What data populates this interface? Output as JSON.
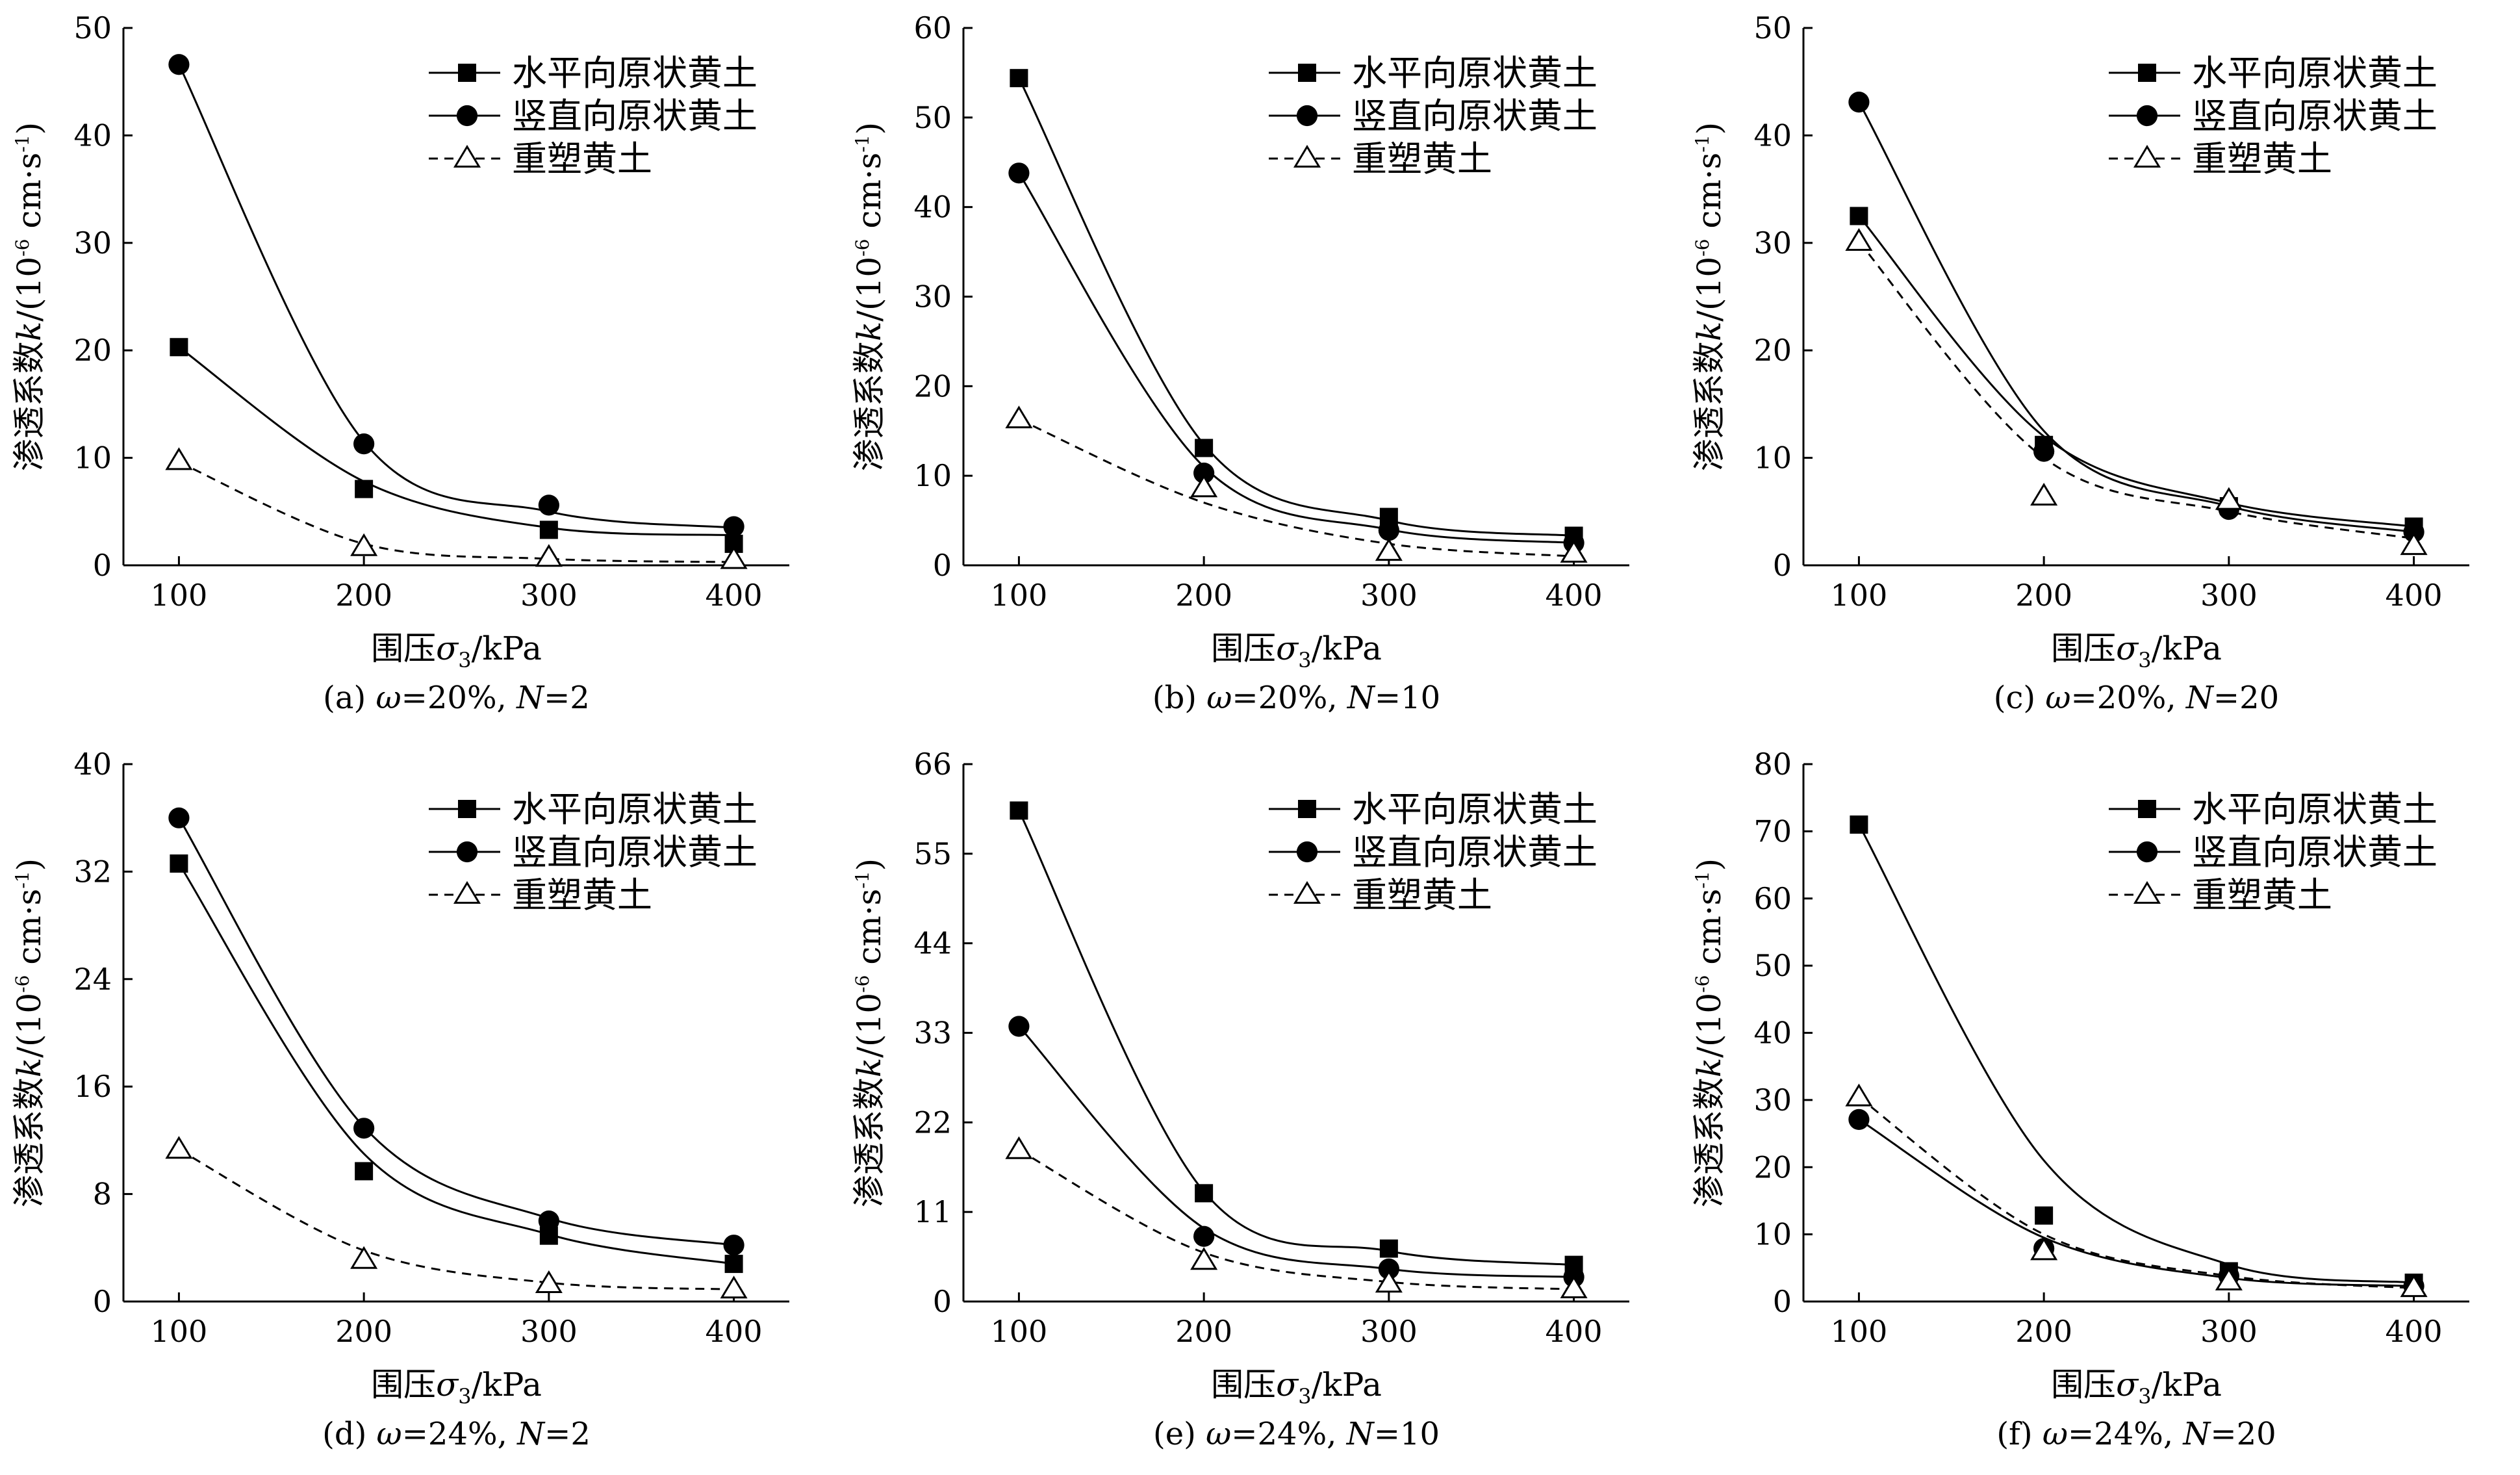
{
  "legend_labels": {
    "horizontal": "水平向原状黄土",
    "vertical": "竖直向原状黄土",
    "remolded": "重塑黄土"
  },
  "axis_text": {
    "x_prefix": "围压",
    "x_symbol": "σ",
    "x_sub": "3",
    "x_unit": "/kPa",
    "y_prefix": "渗透系数",
    "y_symbol": "k",
    "y_unit_open": "/(10",
    "y_exp1": "-6",
    "y_unit_mid": " cm·s",
    "y_exp2": "-1",
    "y_unit_close": ")"
  },
  "chart_data": [
    {
      "type": "line",
      "caption": [
        "(a) ",
        "ω",
        "=20%, ",
        "N",
        "=2"
      ],
      "x": [
        100,
        200,
        300,
        400
      ],
      "xlim": [
        70,
        430
      ],
      "ylim": [
        0,
        50
      ],
      "yticks": [
        0,
        10,
        20,
        30,
        40,
        50
      ],
      "series": [
        {
          "name": "水平向原状黄土",
          "marker": "square",
          "line": "solid",
          "values": [
            20.3,
            7.1,
            3.3,
            2.0
          ],
          "fit": [
            20.3,
            7.8,
            3.5,
            2.8
          ]
        },
        {
          "name": "竖直向原状黄土",
          "marker": "circle",
          "line": "solid",
          "values": [
            46.6,
            11.3,
            5.6,
            3.6
          ],
          "fit": [
            46.6,
            11.5,
            5.0,
            3.5
          ]
        },
        {
          "name": "重塑黄土",
          "marker": "triangle",
          "line": "dashed",
          "values": [
            9.7,
            1.7,
            0.7,
            0.5
          ],
          "fit": [
            9.6,
            2.0,
            0.6,
            0.3
          ]
        }
      ],
      "legend": "top-right"
    },
    {
      "type": "line",
      "caption": [
        "(b) ",
        "ω",
        "=20%, ",
        "N",
        "=10"
      ],
      "x": [
        100,
        200,
        300,
        400
      ],
      "xlim": [
        70,
        430
      ],
      "ylim": [
        0,
        60
      ],
      "yticks": [
        0,
        10,
        20,
        30,
        40,
        50,
        60
      ],
      "series": [
        {
          "name": "水平向原状黄土",
          "marker": "square",
          "line": "solid",
          "values": [
            54.4,
            13.1,
            5.4,
            3.3
          ],
          "fit": [
            54.4,
            13.5,
            5.0,
            3.3
          ]
        },
        {
          "name": "竖直向原状黄土",
          "marker": "circle",
          "line": "solid",
          "values": [
            43.8,
            10.3,
            3.9,
            2.5
          ],
          "fit": [
            43.8,
            11.0,
            4.0,
            2.5
          ]
        },
        {
          "name": "重塑黄土",
          "marker": "triangle",
          "line": "dashed",
          "values": [
            16.3,
            8.6,
            1.5,
            1.3
          ],
          "fit": [
            16.3,
            7.0,
            2.4,
            1.0
          ]
        }
      ],
      "legend": "top-right"
    },
    {
      "type": "line",
      "caption": [
        "(c) ",
        "ω",
        "=20%, ",
        "N",
        "=20"
      ],
      "x": [
        100,
        200,
        300,
        400
      ],
      "xlim": [
        70,
        430
      ],
      "ylim": [
        0,
        50
      ],
      "yticks": [
        0,
        10,
        20,
        30,
        40,
        50
      ],
      "series": [
        {
          "name": "水平向原状黄土",
          "marker": "square",
          "line": "solid",
          "values": [
            32.5,
            11.2,
            5.5,
            3.6
          ],
          "fit": [
            32.5,
            12.0,
            5.8,
            3.6
          ]
        },
        {
          "name": "竖直向原状黄土",
          "marker": "circle",
          "line": "solid",
          "values": [
            43.1,
            10.6,
            5.2,
            3.1
          ],
          "fit": [
            43.1,
            12.5,
            5.5,
            3.1
          ]
        },
        {
          "name": "重塑黄土",
          "marker": "triangle",
          "line": "dashed",
          "values": [
            30.1,
            6.4,
            6.0,
            1.8
          ],
          "fit": [
            30.1,
            10.0,
            5.0,
            2.5
          ]
        }
      ],
      "legend": "top-right"
    },
    {
      "type": "line",
      "caption": [
        "(d) ",
        "ω",
        "=24%, ",
        "N",
        "=2"
      ],
      "x": [
        100,
        200,
        300,
        400
      ],
      "xlim": [
        70,
        430
      ],
      "ylim": [
        0,
        40
      ],
      "yticks": [
        0,
        8,
        16,
        24,
        32,
        40
      ],
      "series": [
        {
          "name": "水平向原状黄土",
          "marker": "square",
          "line": "solid",
          "values": [
            32.6,
            9.7,
            4.9,
            2.8
          ],
          "fit": [
            32.6,
            11.0,
            5.0,
            2.8
          ]
        },
        {
          "name": "竖直向原状黄土",
          "marker": "circle",
          "line": "solid",
          "values": [
            36.0,
            12.9,
            6.0,
            4.2
          ],
          "fit": [
            36.0,
            13.0,
            6.2,
            4.2
          ]
        },
        {
          "name": "重塑黄土",
          "marker": "triangle",
          "line": "dashed",
          "values": [
            11.3,
            3.1,
            1.3,
            0.9
          ],
          "fit": [
            11.3,
            3.8,
            1.4,
            0.9
          ]
        }
      ],
      "legend": "top-right"
    },
    {
      "type": "line",
      "caption": [
        "(e) ",
        "ω",
        "=24%, ",
        "N",
        "=10"
      ],
      "x": [
        100,
        200,
        300,
        400
      ],
      "xlim": [
        70,
        430
      ],
      "ylim": [
        0,
        66
      ],
      "yticks": [
        0,
        11,
        22,
        33,
        44,
        55,
        66
      ],
      "series": [
        {
          "name": "水平向原状黄土",
          "marker": "square",
          "line": "solid",
          "values": [
            60.3,
            13.3,
            6.5,
            4.5
          ],
          "fit": [
            60.3,
            13.5,
            6.2,
            4.5
          ]
        },
        {
          "name": "竖直向原状黄土",
          "marker": "circle",
          "line": "solid",
          "values": [
            33.8,
            8.0,
            4.0,
            3.0
          ],
          "fit": [
            33.8,
            9.0,
            4.0,
            3.0
          ]
        },
        {
          "name": "重塑黄土",
          "marker": "triangle",
          "line": "dashed",
          "values": [
            18.6,
            5.0,
            2.2,
            1.5
          ],
          "fit": [
            18.6,
            6.0,
            2.4,
            1.5
          ]
        }
      ],
      "legend": "top-right"
    },
    {
      "type": "line",
      "caption": [
        "(f) ",
        "ω",
        "=24%, ",
        "N",
        "=20"
      ],
      "x": [
        100,
        200,
        300,
        400
      ],
      "xlim": [
        70,
        430
      ],
      "ylim": [
        0,
        80
      ],
      "yticks": [
        0,
        10,
        20,
        30,
        40,
        50,
        60,
        70,
        80
      ],
      "series": [
        {
          "name": "水平向原状黄土",
          "marker": "square",
          "line": "solid",
          "values": [
            71.0,
            12.8,
            4.5,
            2.8
          ],
          "fit": [
            71.0,
            21.0,
            5.5,
            2.8
          ]
        },
        {
          "name": "竖直向原状黄土",
          "marker": "circle",
          "line": "solid",
          "values": [
            27.1,
            7.9,
            3.8,
            2.3
          ],
          "fit": [
            27.1,
            9.5,
            3.5,
            2.3
          ]
        },
        {
          "name": "重塑黄土",
          "marker": "triangle",
          "line": "dashed",
          "values": [
            30.4,
            7.5,
            3.0,
            2.0
          ],
          "fit": [
            30.4,
            10.0,
            3.8,
            2.0
          ]
        }
      ],
      "legend": "top-right"
    }
  ]
}
